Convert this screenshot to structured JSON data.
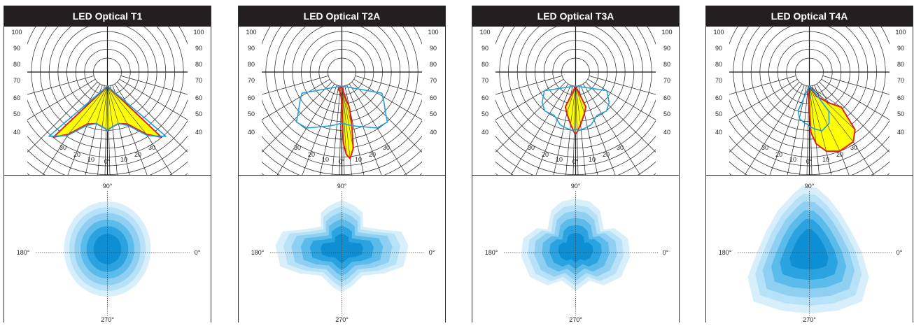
{
  "panels": [
    {
      "title": "LED Optical T1"
    },
    {
      "title": "LED Optical T2A"
    },
    {
      "title": "LED Optical T3A"
    },
    {
      "title": "LED Optical T4A"
    }
  ],
  "polar_scale": {
    "side_labels": [
      "100",
      "90",
      "80",
      "70",
      "60",
      "50",
      "40"
    ],
    "bottom_labels": [
      "30",
      "20",
      "10",
      "0°",
      "10",
      "20",
      "30"
    ]
  },
  "footprint_axes": {
    "top": "90°",
    "left": "180°",
    "right": "0°",
    "bottom": "270°"
  },
  "colors": {
    "header_bg": "#231f20",
    "header_text": "#ffffff",
    "fill_yellow": "#ffff00",
    "curve_red": "#e0201c",
    "curve_blue": "#1fa0dc",
    "iso_levels": [
      "#d7eefb",
      "#b7e1f7",
      "#8fd0f2",
      "#5bbbeb",
      "#2ba3e0",
      "#0f8fd3"
    ]
  },
  "chart_data": [
    {
      "type": "polar",
      "title": "LED Optical T1",
      "angle_unit": "degrees",
      "radial_labels": [
        100,
        90,
        80,
        70,
        60,
        50,
        40
      ],
      "curves": [
        {
          "color": "red",
          "fill": "yellow",
          "angles": [
            -56,
            -50,
            -40,
            -30,
            -20,
            -10,
            0,
            10,
            20,
            30,
            40,
            50,
            56
          ],
          "values": [
            0.95,
            0.8,
            0.56,
            0.52,
            0.55,
            0.58,
            0.6,
            0.58,
            0.55,
            0.52,
            0.56,
            0.8,
            0.95
          ]
        },
        {
          "color": "blue",
          "angles": [
            -58,
            -50,
            -40,
            -30,
            -20,
            -10,
            0,
            10,
            20,
            30,
            40,
            50,
            58
          ],
          "values": [
            0.98,
            0.82,
            0.58,
            0.52,
            0.55,
            0.58,
            0.6,
            0.58,
            0.55,
            0.52,
            0.58,
            0.82,
            0.98
          ]
        }
      ],
      "footprint": {
        "shape": "circle",
        "levels": 6
      }
    },
    {
      "type": "polar",
      "title": "LED Optical T2A",
      "angle_unit": "degrees",
      "radial_labels": [
        100,
        90,
        80,
        70,
        60,
        50,
        40
      ],
      "curves": [
        {
          "color": "red",
          "fill": "yellow",
          "angles": [
            -30,
            -25,
            -20,
            -10,
            0,
            5,
            10,
            15,
            20,
            25,
            28,
            30,
            20,
            5
          ],
          "values": [
            0.05,
            0.06,
            0.08,
            0.15,
            0.3,
            0.6,
            0.78,
            0.92,
            0.98,
            0.85,
            0.55,
            0.3,
            0.1,
            0.02
          ]
        },
        {
          "color": "blue",
          "angles": [
            -72,
            -66,
            -62,
            -58,
            -50,
            -40,
            -30,
            -20,
            -10,
            0,
            10,
            20,
            30,
            40,
            50,
            58,
            62,
            66,
            72
          ],
          "values": [
            0.42,
            0.52,
            0.6,
            0.72,
            0.7,
            0.6,
            0.55,
            0.52,
            0.5,
            0.5,
            0.5,
            0.52,
            0.55,
            0.6,
            0.7,
            0.72,
            0.6,
            0.52,
            0.42
          ]
        }
      ],
      "footprint": {
        "shape": "horizontal-band",
        "levels": 6
      }
    },
    {
      "type": "polar",
      "title": "LED Optical T3A",
      "angle_unit": "degrees",
      "radial_labels": [
        100,
        90,
        80,
        70,
        60,
        50,
        40
      ],
      "curves": [
        {
          "color": "red",
          "fill": "yellow",
          "angles": [
            -35,
            -30,
            -20,
            -10,
            0,
            10,
            20,
            30,
            35
          ],
          "values": [
            0.3,
            0.38,
            0.52,
            0.62,
            0.64,
            0.62,
            0.52,
            0.38,
            0.3
          ]
        },
        {
          "color": "blue",
          "angles": [
            -70,
            -62,
            -55,
            -45,
            -35,
            -25,
            -15,
            0,
            15,
            25,
            35,
            45,
            55,
            62,
            70
          ],
          "values": [
            0.3,
            0.42,
            0.48,
            0.46,
            0.55,
            0.58,
            0.6,
            0.58,
            0.6,
            0.58,
            0.55,
            0.46,
            0.48,
            0.42,
            0.3
          ]
        }
      ],
      "footprint": {
        "shape": "trefoil",
        "levels": 6
      }
    },
    {
      "type": "polar",
      "title": "LED Optical T4A",
      "angle_unit": "degrees",
      "radial_labels": [
        100,
        90,
        80,
        70,
        60,
        50,
        40
      ],
      "curves": [
        {
          "color": "red",
          "fill": "yellow",
          "angles": [
            -20,
            -15,
            -8,
            0,
            10,
            20,
            30,
            40,
            50,
            55,
            58,
            50,
            35
          ],
          "values": [
            0.05,
            0.1,
            0.25,
            0.3,
            0.62,
            0.78,
            0.9,
            0.95,
            0.92,
            0.8,
            0.45,
            0.3,
            0.15
          ]
        },
        {
          "color": "blue",
          "angles": [
            -35,
            -30,
            -20,
            -10,
            0,
            10,
            20,
            30,
            40,
            45,
            40
          ],
          "values": [
            0.35,
            0.45,
            0.5,
            0.52,
            0.55,
            0.55,
            0.58,
            0.62,
            0.55,
            0.4,
            0.2
          ]
        }
      ],
      "footprint": {
        "shape": "downward-flare",
        "levels": 6
      }
    }
  ]
}
